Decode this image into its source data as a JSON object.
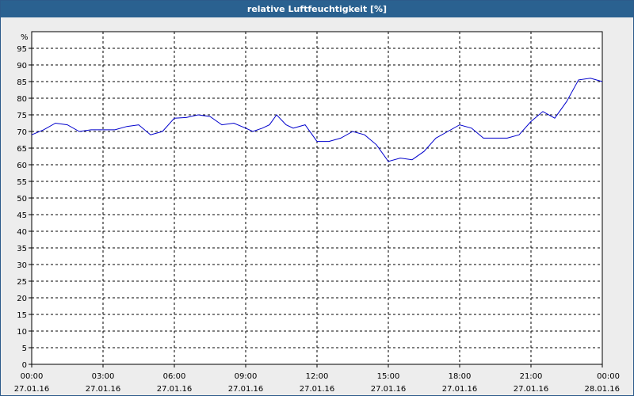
{
  "window": {
    "title": "relative Luftfeuchtigkeit [%]"
  },
  "chart_data": {
    "type": "line",
    "title": "relative Luftfeuchtigkeit [%]",
    "ylabel": "%",
    "ylim": [
      0,
      100
    ],
    "y_ticks": [
      0,
      5,
      10,
      15,
      20,
      25,
      30,
      35,
      40,
      45,
      50,
      55,
      60,
      65,
      70,
      75,
      80,
      85,
      90,
      95
    ],
    "x_ticks": [
      {
        "time": "00:00",
        "date": "27.01.16"
      },
      {
        "time": "03:00",
        "date": "27.01.16"
      },
      {
        "time": "06:00",
        "date": "27.01.16"
      },
      {
        "time": "09:00",
        "date": "27.01.16"
      },
      {
        "time": "12:00",
        "date": "27.01.16"
      },
      {
        "time": "15:00",
        "date": "27.01.16"
      },
      {
        "time": "18:00",
        "date": "27.01.16"
      },
      {
        "time": "21:00",
        "date": "27.01.16"
      },
      {
        "time": "00:00",
        "date": "28.01.16"
      }
    ],
    "grid": true,
    "line_color": "#0000cc",
    "series": [
      {
        "hours": [
          0,
          0.5,
          1,
          1.5,
          2,
          2.5,
          3,
          3.5,
          4,
          4.5,
          5,
          5.5,
          6,
          6.5,
          7,
          7.5,
          8,
          8.5,
          9,
          9.3,
          9.7,
          10,
          10.3,
          10.7,
          11,
          11.5,
          12,
          12.5,
          13,
          13.5,
          14,
          14.5,
          15,
          15.5,
          16,
          16.5,
          17,
          17.5,
          18,
          18.5,
          19,
          19.5,
          20,
          20.5,
          21,
          21.5,
          22,
          22.5,
          23,
          23.5,
          24
        ],
        "values": [
          69,
          70.5,
          72.5,
          72,
          70,
          70.5,
          70.5,
          70.5,
          71.5,
          72,
          69,
          70,
          74,
          74.2,
          75,
          74.5,
          72,
          72.5,
          71,
          70,
          71,
          72,
          75,
          72,
          71,
          72,
          67,
          67,
          68,
          70,
          69,
          66,
          61,
          62,
          61.5,
          64,
          68,
          70,
          72,
          71,
          68,
          68,
          68,
          69,
          73,
          76,
          74,
          79,
          85.5,
          86,
          85
        ]
      }
    ]
  }
}
